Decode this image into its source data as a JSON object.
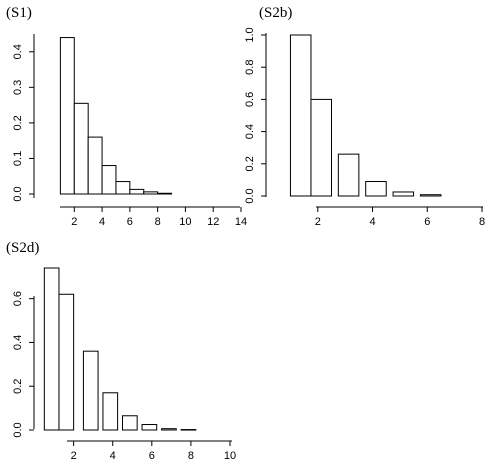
{
  "chart_data": [
    {
      "type": "bar",
      "panel_label": "(S1)",
      "bar_width": 1,
      "categories": [
        1,
        2,
        3,
        4,
        5,
        6,
        7,
        8
      ],
      "values": [
        0.44,
        0.255,
        0.16,
        0.08,
        0.035,
        0.013,
        0.006,
        0.002
      ],
      "xlim": [
        0,
        14
      ],
      "ylim": [
        0,
        0.45
      ],
      "xticks": [
        2,
        4,
        6,
        8,
        10,
        12,
        14
      ],
      "yticks": [
        0.0,
        0.1,
        0.2,
        0.3,
        0.4
      ],
      "ytick_labels": [
        "0.0",
        "0.1",
        "0.2",
        "0.3",
        "0.4"
      ],
      "grid": false
    },
    {
      "type": "bar",
      "panel_label": "(S2b)",
      "bar_width": 0.75,
      "categories": [
        1.0,
        1.75,
        2.75,
        3.75,
        4.75,
        5.75
      ],
      "values": [
        1.0,
        0.6,
        0.26,
        0.09,
        0.025,
        0.008
      ],
      "xlim": [
        0.6,
        8.0
      ],
      "ylim": [
        0,
        1.0
      ],
      "xticks": [
        2,
        4,
        6,
        8
      ],
      "yticks": [
        0.0,
        0.2,
        0.4,
        0.6,
        0.8,
        1.0
      ],
      "ytick_labels": [
        "0.0",
        "0.2",
        "0.4",
        "0.6",
        "0.8",
        "1.0"
      ],
      "grid": false
    },
    {
      "type": "bar",
      "panel_label": "(S2d)",
      "bar_width": 0.75,
      "categories": [
        0.5,
        1.25,
        2.5,
        3.5,
        4.5,
        5.5,
        6.5,
        7.5
      ],
      "values": [
        0.74,
        0.62,
        0.36,
        0.17,
        0.065,
        0.025,
        0.006,
        0.002
      ],
      "xlim": [
        0.1,
        10.0
      ],
      "ylim": [
        0,
        0.74
      ],
      "xticks": [
        2,
        4,
        6,
        8,
        10
      ],
      "yticks": [
        0.0,
        0.2,
        0.4,
        0.6
      ],
      "ytick_labels": [
        "0.0",
        "0.2",
        "0.4",
        "0.6"
      ],
      "grid": false
    }
  ]
}
